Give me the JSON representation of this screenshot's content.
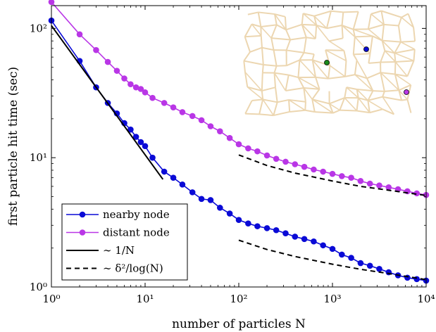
{
  "colors": {
    "nearby": "#0a0ad6",
    "distant": "#b936e6",
    "fit": "#000000",
    "network": "#ecd6b0",
    "source": "#1a8a1a"
  },
  "chart_data": {
    "type": "line",
    "xscale": "log",
    "yscale": "log",
    "xlim": [
      1,
      10000
    ],
    "ylim": [
      1,
      150
    ],
    "xlabel": "number of particles N",
    "ylabel": "first particle hit time (sec)",
    "x_ticks": [
      {
        "value": 1,
        "label": "10⁰"
      },
      {
        "value": 10,
        "label": "10¹"
      },
      {
        "value": 100,
        "label": "10²"
      },
      {
        "value": 1000,
        "label": "10³"
      },
      {
        "value": 10000,
        "label": "10⁴"
      }
    ],
    "y_ticks": [
      {
        "value": 1,
        "label": "10⁰"
      },
      {
        "value": 10,
        "label": "10¹"
      },
      {
        "value": 100,
        "label": "10²"
      }
    ],
    "grid": false,
    "legend_position": "bottom-left",
    "series": [
      {
        "name": "nearby node",
        "color_key": "nearby",
        "style": "line-marker",
        "x": [
          1,
          2,
          3,
          4,
          5,
          6,
          7,
          8,
          9,
          10,
          12,
          16,
          20,
          25,
          32,
          40,
          50,
          63,
          80,
          100,
          126,
          158,
          200,
          251,
          316,
          398,
          501,
          631,
          794,
          1000,
          1259,
          1585,
          1995,
          2512,
          3162,
          3981,
          5012,
          6310,
          7943,
          10000
        ],
        "y": [
          115,
          56,
          35,
          26.5,
          22,
          18.5,
          16.5,
          14.5,
          13.2,
          12.3,
          10,
          7.8,
          7,
          6.2,
          5.4,
          4.8,
          4.7,
          4.1,
          3.7,
          3.3,
          3.1,
          2.95,
          2.85,
          2.75,
          2.6,
          2.45,
          2.35,
          2.25,
          2.1,
          1.97,
          1.78,
          1.68,
          1.53,
          1.46,
          1.38,
          1.3,
          1.23,
          1.18,
          1.15,
          1.12
        ]
      },
      {
        "name": "distant node",
        "color_key": "distant",
        "style": "line-marker",
        "x": [
          1,
          2,
          3,
          4,
          5,
          6,
          7,
          8,
          9,
          10,
          12,
          16,
          20,
          25,
          32,
          40,
          50,
          63,
          80,
          100,
          126,
          158,
          200,
          251,
          316,
          398,
          501,
          631,
          794,
          1000,
          1259,
          1585,
          1995,
          2512,
          3162,
          3981,
          5012,
          6310,
          7943,
          10000
        ],
        "y": [
          160,
          90,
          68,
          55,
          47,
          41,
          37,
          35,
          34,
          32,
          29,
          26.5,
          24.5,
          22.5,
          21,
          19.5,
          17.5,
          16,
          14.2,
          12.7,
          11.8,
          11.2,
          10.4,
          9.8,
          9.3,
          8.9,
          8.5,
          8.1,
          7.8,
          7.5,
          7.2,
          7,
          6.6,
          6.3,
          6.1,
          5.9,
          5.7,
          5.5,
          5.3,
          5.15
        ]
      },
      {
        "name": "∼ 1/N",
        "color_key": "fit",
        "style": "solid",
        "x": [
          1,
          15.5
        ],
        "y": [
          105,
          6.8
        ]
      },
      {
        "name": "∼ δ²/log(N)",
        "color_key": "fit",
        "style": "dashed",
        "x": [
          100,
          200,
          400,
          1000,
          2000,
          4000,
          10000
        ],
        "y": [
          10.5,
          8.7,
          7.6,
          6.6,
          6.0,
          5.6,
          5.1
        ]
      },
      {
        "name": "∼ δ²/log(N)",
        "color_key": "fit",
        "style": "dashed",
        "x": [
          100,
          200,
          400,
          1000,
          2000,
          4000,
          10000
        ],
        "y": [
          2.3,
          1.95,
          1.72,
          1.5,
          1.37,
          1.27,
          1.14
        ]
      }
    ],
    "legend": [
      {
        "label": "nearby node",
        "color_key": "nearby",
        "style": "line-marker"
      },
      {
        "label": "distant node",
        "color_key": "distant",
        "style": "line-marker"
      },
      {
        "label": "∼ 1/N",
        "color_key": "fit",
        "style": "solid"
      },
      {
        "label": "∼ δ²/log(N)",
        "color_key": "fit",
        "style": "dashed"
      }
    ]
  },
  "inset": {
    "description_free": true,
    "markers": [
      {
        "name": "source",
        "color_key": "source"
      },
      {
        "name": "nearby",
        "color_key": "nearby"
      },
      {
        "name": "distant",
        "color_key": "distant"
      }
    ]
  }
}
